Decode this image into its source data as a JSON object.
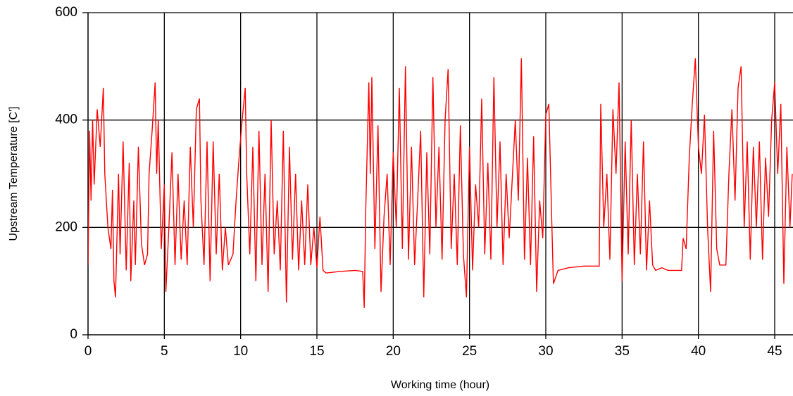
{
  "chart_data": {
    "type": "line",
    "xlabel": "Working time (hour)",
    "ylabel": "Upstream Temperature [C']",
    "xlim": [
      0,
      46.2
    ],
    "xticks": [
      0,
      5,
      10,
      15,
      20,
      25,
      30,
      35,
      40,
      45
    ],
    "ylim": [
      0,
      600
    ],
    "yticks": [
      0,
      200,
      400,
      600
    ],
    "grid": true,
    "x": [
      0,
      0.1,
      0.2,
      0.3,
      0.4,
      0.6,
      0.8,
      1,
      1.1,
      1.3,
      1.5,
      1.6,
      1.7,
      1.8,
      2,
      2.1,
      2.3,
      2.5,
      2.7,
      2.8,
      3,
      3.1,
      3.3,
      3.5,
      3.7,
      3.9,
      4,
      4.2,
      4.4,
      4.5,
      4.6,
      4.8,
      5,
      5.1,
      5.3,
      5.5,
      5.7,
      5.9,
      6.1,
      6.3,
      6.5,
      6.7,
      6.9,
      7.1,
      7.3,
      7.4,
      7.6,
      7.8,
      8,
      8.2,
      8.4,
      8.6,
      8.8,
      9,
      9.2,
      9.5,
      9.7,
      9.9,
      10.1,
      10.3,
      10.4,
      10.6,
      10.8,
      11,
      11.2,
      11.4,
      11.6,
      11.8,
      12,
      12.2,
      12.4,
      12.6,
      12.8,
      13,
      13.2,
      13.4,
      13.6,
      13.8,
      14,
      14.2,
      14.4,
      14.6,
      14.8,
      15,
      15.2,
      15.4,
      15.6,
      16.5,
      17.5,
      18,
      18.1,
      18.2,
      18.4,
      18.5,
      18.6,
      18.8,
      19,
      19.2,
      19.4,
      19.6,
      19.8,
      20,
      20.2,
      20.4,
      20.6,
      20.8,
      21,
      21.2,
      21.4,
      21.6,
      21.8,
      22,
      22.2,
      22.4,
      22.6,
      22.8,
      23,
      23.2,
      23.4,
      23.6,
      23.8,
      24,
      24.2,
      24.4,
      24.6,
      24.8,
      25,
      25.2,
      25.4,
      25.6,
      25.8,
      26,
      26.2,
      26.4,
      26.6,
      26.8,
      27,
      27.2,
      27.4,
      27.6,
      28,
      28.2,
      28.4,
      28.6,
      28.8,
      29,
      29.2,
      29.4,
      29.6,
      29.8,
      30,
      30.2,
      30.4,
      30.5,
      30.8,
      31.5,
      32.5,
      33.5,
      33.6,
      33.8,
      34,
      34.2,
      34.4,
      34.6,
      34.8,
      35,
      35.2,
      35.4,
      35.6,
      35.8,
      36,
      36.2,
      36.4,
      36.6,
      36.8,
      37,
      37.2,
      37.6,
      38,
      38.5,
      38.9,
      39,
      39.2,
      39.4,
      39.6,
      39.8,
      40,
      40.2,
      40.4,
      40.6,
      40.8,
      41,
      41.2,
      41.4,
      41.8,
      42,
      42.2,
      42.4,
      42.6,
      42.8,
      43,
      43.2,
      43.4,
      43.6,
      43.8,
      44,
      44.2,
      44.4,
      44.6,
      44.8,
      45,
      45.2,
      45.4,
      45.6,
      45.8,
      46,
      46.15
    ],
    "series": [
      {
        "color": "#ff0000",
        "values": [
          130,
          380,
          250,
          400,
          280,
          420,
          350,
          460,
          300,
          200,
          160,
          270,
          100,
          70,
          300,
          150,
          360,
          120,
          320,
          100,
          250,
          130,
          350,
          170,
          130,
          150,
          300,
          380,
          470,
          300,
          400,
          160,
          280,
          80,
          200,
          340,
          130,
          300,
          140,
          250,
          130,
          350,
          200,
          420,
          440,
          250,
          130,
          360,
          100,
          360,
          150,
          300,
          120,
          200,
          130,
          150,
          250,
          330,
          400,
          460,
          300,
          150,
          350,
          100,
          380,
          130,
          300,
          80,
          400,
          150,
          250,
          120,
          380,
          60,
          350,
          140,
          300,
          120,
          250,
          130,
          280,
          130,
          200,
          125,
          220,
          120,
          115,
          118,
          120,
          118,
          50,
          230,
          470,
          300,
          480,
          160,
          390,
          80,
          220,
          300,
          130,
          340,
          200,
          460,
          160,
          500,
          140,
          350,
          130,
          250,
          380,
          70,
          340,
          150,
          480,
          200,
          350,
          140,
          400,
          495,
          160,
          300,
          130,
          390,
          150,
          70,
          350,
          120,
          280,
          200,
          440,
          150,
          320,
          140,
          480,
          200,
          360,
          130,
          300,
          180,
          400,
          250,
          515,
          140,
          330,
          130,
          370,
          80,
          250,
          180,
          410,
          430,
          200,
          95,
          120,
          125,
          128,
          128,
          430,
          200,
          300,
          140,
          420,
          300,
          470,
          100,
          360,
          150,
          400,
          130,
          300,
          150,
          360,
          120,
          250,
          130,
          120,
          125,
          120,
          120,
          120,
          180,
          160,
          330,
          430,
          515,
          350,
          300,
          410,
          200,
          80,
          380,
          160,
          130,
          130,
          300,
          420,
          250,
          460,
          500,
          200,
          360,
          140,
          350,
          200,
          360,
          140,
          330,
          220,
          400,
          470,
          300,
          430,
          95,
          350,
          200,
          300
        ]
      }
    ]
  }
}
